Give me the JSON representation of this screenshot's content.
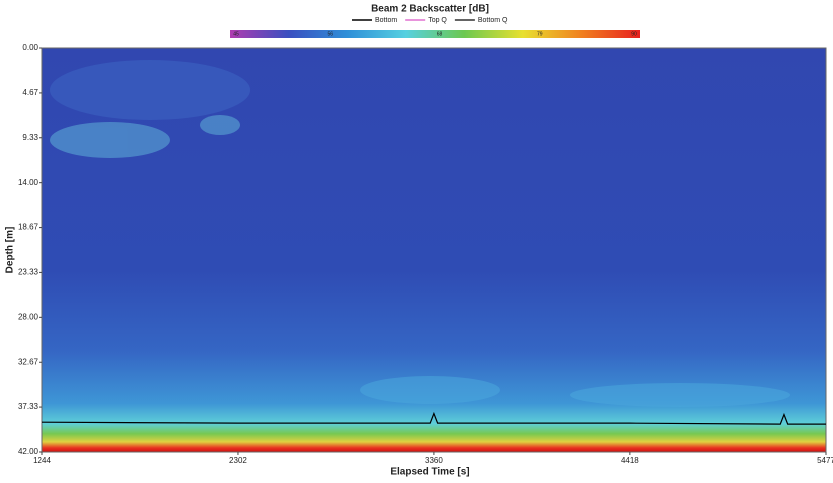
{
  "chart_data": {
    "type": "line",
    "title": "Beam 2 Backscatter [dB]",
    "x_label": "Elapsed Time [s]",
    "y_label": "Depth [m]",
    "colorbar": {
      "lim": [
        45,
        90
      ],
      "ticks": [
        45,
        56,
        68,
        79,
        90
      ],
      "colors": [
        "#b03cb0",
        "#3a4fc0",
        "#2f8fd8",
        "#56d0e0",
        "#6cc850",
        "#e8e030",
        "#f08020",
        "#e82020"
      ]
    },
    "legend": [
      {
        "name": "Bottom",
        "color": "#000000"
      },
      {
        "name": "Top Q",
        "color": "#e070d0"
      },
      {
        "name": "Bottom Q",
        "color": "#303030"
      }
    ],
    "x": [
      1244,
      2302,
      3340,
      3360,
      3380,
      4418,
      5230,
      5250,
      5270,
      5477
    ],
    "series": [
      {
        "name": "Bottom",
        "color": "#000000",
        "values": [
          38.9,
          39.0,
          39.0,
          38.0,
          39.0,
          39.0,
          39.1,
          38.1,
          39.1,
          39.1
        ]
      }
    ],
    "xlim": [
      1244,
      5477
    ],
    "ylim": [
      0,
      42
    ],
    "xticks": [
      1244,
      2302,
      3360,
      4418,
      5477
    ],
    "yticks": [
      {
        "value": 0,
        "label": "0.00"
      },
      {
        "value": 4.67,
        "label": "4.67"
      },
      {
        "value": 9.33,
        "label": "9.33"
      },
      {
        "value": 14,
        "label": "14.00"
      },
      {
        "value": 18.67,
        "label": "18.67"
      },
      {
        "value": 23.33,
        "label": "23.33"
      },
      {
        "value": 28,
        "label": "28.00"
      },
      {
        "value": 32.67,
        "label": "32.67"
      },
      {
        "value": 37.33,
        "label": "37.33"
      },
      {
        "value": 42,
        "label": "42.00"
      }
    ],
    "y_inverted": true
  }
}
